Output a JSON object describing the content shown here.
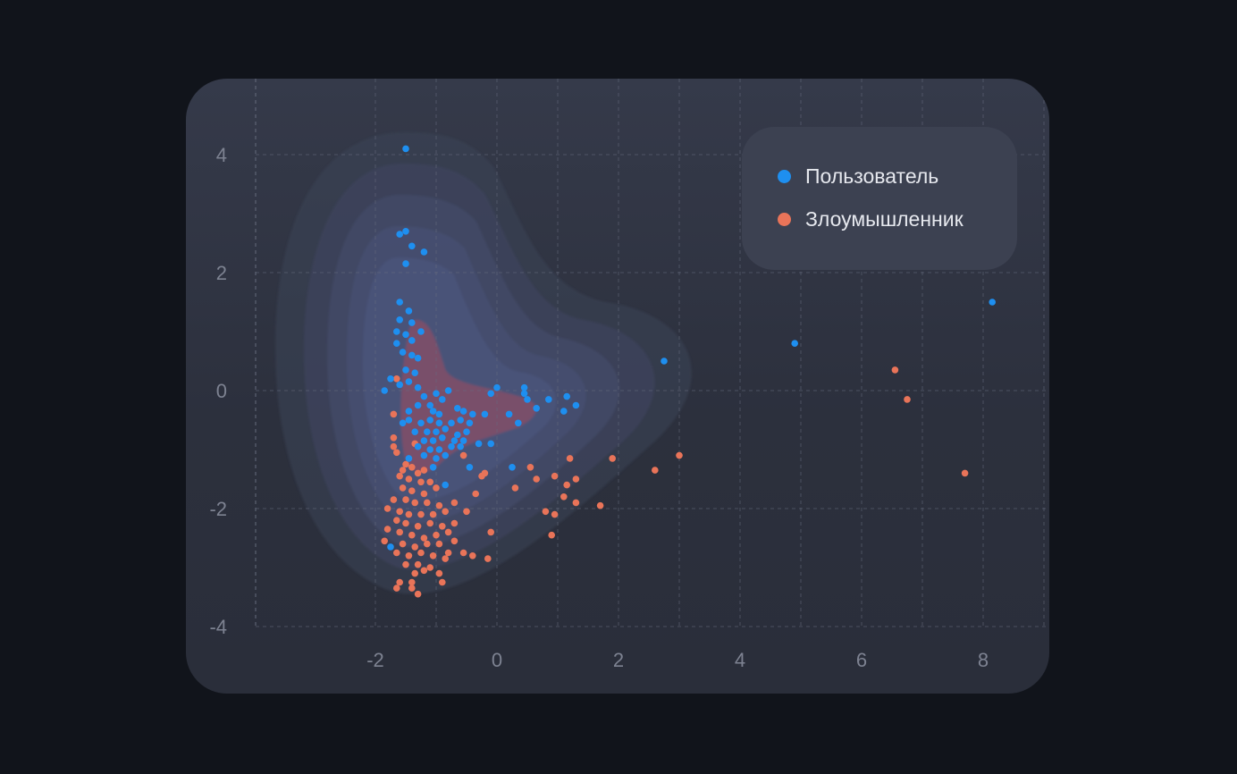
{
  "chart_data": {
    "type": "scatter",
    "title": "",
    "xlabel": "",
    "ylabel": "",
    "xlim": [
      -4.0,
      9.1
    ],
    "ylim": [
      -4.1,
      5.0
    ],
    "xticks": [
      -2,
      0,
      2,
      4,
      6,
      8
    ],
    "yticks": [
      4,
      2,
      0,
      -2,
      -4
    ],
    "xtick_labels": [
      "-2",
      "0",
      "2",
      "4",
      "6",
      "8"
    ],
    "ytick_labels": [
      "4",
      "2",
      "0",
      "-2",
      "-4"
    ],
    "grid": true,
    "legend_position": "top-right",
    "series": [
      {
        "name": "Пользователь",
        "color": "#1e8ff0",
        "points": [
          [
            -1.5,
            4.1
          ],
          [
            -1.6,
            2.65
          ],
          [
            -1.5,
            2.7
          ],
          [
            -1.4,
            2.45
          ],
          [
            -1.2,
            2.35
          ],
          [
            -1.5,
            2.15
          ],
          [
            -1.6,
            1.5
          ],
          [
            -1.45,
            1.35
          ],
          [
            -1.6,
            1.2
          ],
          [
            -1.4,
            1.15
          ],
          [
            -1.25,
            1.0
          ],
          [
            -1.65,
            1.0
          ],
          [
            -1.5,
            0.95
          ],
          [
            -1.4,
            0.85
          ],
          [
            -1.65,
            0.8
          ],
          [
            -1.55,
            0.65
          ],
          [
            -1.4,
            0.6
          ],
          [
            -1.3,
            0.55
          ],
          [
            -1.5,
            0.35
          ],
          [
            -1.35,
            0.3
          ],
          [
            -1.45,
            0.15
          ],
          [
            -1.6,
            0.1
          ],
          [
            -1.75,
            0.2
          ],
          [
            -1.85,
            0.0
          ],
          [
            -1.3,
            0.05
          ],
          [
            -1.2,
            -0.1
          ],
          [
            -1.0,
            -0.05
          ],
          [
            -0.8,
            -0.0
          ],
          [
            -0.9,
            -0.15
          ],
          [
            -1.1,
            -0.25
          ],
          [
            -1.3,
            -0.25
          ],
          [
            -1.45,
            -0.35
          ],
          [
            -1.05,
            -0.35
          ],
          [
            -0.95,
            -0.4
          ],
          [
            -0.65,
            -0.3
          ],
          [
            -0.55,
            -0.35
          ],
          [
            -0.4,
            -0.4
          ],
          [
            -0.2,
            -0.4
          ],
          [
            -0.1,
            -0.05
          ],
          [
            0.0,
            0.05
          ],
          [
            0.2,
            -0.4
          ],
          [
            0.35,
            -0.55
          ],
          [
            0.45,
            -0.05
          ],
          [
            0.5,
            -0.15
          ],
          [
            0.65,
            -0.3
          ],
          [
            0.85,
            -0.15
          ],
          [
            1.15,
            -0.1
          ],
          [
            1.3,
            -0.25
          ],
          [
            1.1,
            -0.35
          ],
          [
            0.45,
            0.05
          ],
          [
            -1.45,
            -0.5
          ],
          [
            -1.55,
            -0.55
          ],
          [
            -1.25,
            -0.55
          ],
          [
            -1.1,
            -0.5
          ],
          [
            -0.95,
            -0.55
          ],
          [
            -0.75,
            -0.55
          ],
          [
            -0.6,
            -0.5
          ],
          [
            -0.45,
            -0.55
          ],
          [
            -1.35,
            -0.7
          ],
          [
            -1.15,
            -0.7
          ],
          [
            -1.0,
            -0.7
          ],
          [
            -0.85,
            -0.65
          ],
          [
            -0.65,
            -0.75
          ],
          [
            -0.5,
            -0.7
          ],
          [
            -1.2,
            -0.85
          ],
          [
            -1.05,
            -0.85
          ],
          [
            -0.9,
            -0.8
          ],
          [
            -0.7,
            -0.85
          ],
          [
            -0.55,
            -0.85
          ],
          [
            -0.3,
            -0.9
          ],
          [
            -0.1,
            -0.9
          ],
          [
            -1.3,
            -0.95
          ],
          [
            -1.1,
            -1.0
          ],
          [
            -0.95,
            -1.0
          ],
          [
            -0.75,
            -0.95
          ],
          [
            -0.6,
            -0.95
          ],
          [
            -1.2,
            -1.1
          ],
          [
            -1.45,
            -1.15
          ],
          [
            -1.0,
            -1.15
          ],
          [
            -0.85,
            -1.1
          ],
          [
            -1.05,
            -1.3
          ],
          [
            -0.45,
            -1.3
          ],
          [
            0.25,
            -1.3
          ],
          [
            -0.85,
            -1.6
          ],
          [
            -1.75,
            -2.65
          ],
          [
            2.75,
            0.5
          ],
          [
            4.9,
            0.8
          ],
          [
            8.15,
            1.5
          ]
        ]
      },
      {
        "name": "Злоумышленник",
        "color": "#e97459",
        "points": [
          [
            -1.65,
            0.2
          ],
          [
            -1.7,
            -0.4
          ],
          [
            -1.7,
            -0.8
          ],
          [
            -1.7,
            -0.95
          ],
          [
            -1.65,
            -1.05
          ],
          [
            -1.35,
            -0.9
          ],
          [
            -1.5,
            -1.25
          ],
          [
            -1.55,
            -1.35
          ],
          [
            -1.4,
            -1.3
          ],
          [
            -1.3,
            -1.4
          ],
          [
            -1.2,
            -1.35
          ],
          [
            -1.6,
            -1.45
          ],
          [
            -1.45,
            -1.5
          ],
          [
            -1.25,
            -1.55
          ],
          [
            -1.1,
            -1.55
          ],
          [
            -1.0,
            -1.65
          ],
          [
            -1.55,
            -1.65
          ],
          [
            -1.4,
            -1.7
          ],
          [
            -1.2,
            -1.75
          ],
          [
            -1.7,
            -1.85
          ],
          [
            -1.5,
            -1.85
          ],
          [
            -1.35,
            -1.9
          ],
          [
            -1.15,
            -1.9
          ],
          [
            -0.95,
            -1.95
          ],
          [
            -1.8,
            -2.0
          ],
          [
            -1.6,
            -2.05
          ],
          [
            -1.45,
            -2.1
          ],
          [
            -1.25,
            -2.1
          ],
          [
            -1.05,
            -2.1
          ],
          [
            -0.85,
            -2.05
          ],
          [
            -1.65,
            -2.2
          ],
          [
            -1.5,
            -2.25
          ],
          [
            -1.3,
            -2.3
          ],
          [
            -1.1,
            -2.25
          ],
          [
            -0.9,
            -2.3
          ],
          [
            -0.7,
            -2.25
          ],
          [
            -1.8,
            -2.35
          ],
          [
            -1.6,
            -2.4
          ],
          [
            -1.4,
            -2.45
          ],
          [
            -1.2,
            -2.5
          ],
          [
            -1.0,
            -2.45
          ],
          [
            -0.8,
            -2.4
          ],
          [
            -1.85,
            -2.55
          ],
          [
            -1.55,
            -2.6
          ],
          [
            -1.35,
            -2.65
          ],
          [
            -1.15,
            -2.6
          ],
          [
            -0.95,
            -2.6
          ],
          [
            -0.7,
            -2.55
          ],
          [
            -1.65,
            -2.75
          ],
          [
            -1.45,
            -2.8
          ],
          [
            -1.25,
            -2.75
          ],
          [
            -1.05,
            -2.8
          ],
          [
            -0.8,
            -2.75
          ],
          [
            -0.55,
            -2.75
          ],
          [
            -1.5,
            -2.95
          ],
          [
            -1.3,
            -2.95
          ],
          [
            -1.1,
            -3.0
          ],
          [
            -0.85,
            -2.85
          ],
          [
            -0.4,
            -2.8
          ],
          [
            -0.15,
            -2.85
          ],
          [
            -1.35,
            -3.1
          ],
          [
            -1.2,
            -3.05
          ],
          [
            -0.95,
            -3.1
          ],
          [
            -1.6,
            -3.25
          ],
          [
            -1.4,
            -3.25
          ],
          [
            -0.9,
            -3.25
          ],
          [
            -1.65,
            -3.35
          ],
          [
            -1.4,
            -3.35
          ],
          [
            -1.3,
            -3.45
          ],
          [
            -0.7,
            -1.9
          ],
          [
            -0.5,
            -2.05
          ],
          [
            -0.35,
            -1.75
          ],
          [
            -0.25,
            -1.45
          ],
          [
            -0.2,
            -1.4
          ],
          [
            -0.1,
            -2.4
          ],
          [
            0.3,
            -1.65
          ],
          [
            0.55,
            -1.3
          ],
          [
            0.65,
            -1.5
          ],
          [
            0.8,
            -2.05
          ],
          [
            0.9,
            -2.45
          ],
          [
            0.95,
            -1.45
          ],
          [
            0.95,
            -2.1
          ],
          [
            1.1,
            -1.8
          ],
          [
            1.15,
            -1.6
          ],
          [
            1.2,
            -1.15
          ],
          [
            1.3,
            -1.9
          ],
          [
            1.3,
            -1.5
          ],
          [
            1.7,
            -1.95
          ],
          [
            1.9,
            -1.15
          ],
          [
            -0.55,
            -1.1
          ],
          [
            2.6,
            -1.35
          ],
          [
            3.0,
            -1.1
          ],
          [
            6.55,
            0.35
          ],
          [
            6.75,
            -0.15
          ],
          [
            7.7,
            -1.4
          ]
        ]
      }
    ]
  },
  "colors": {
    "background": "#11141b",
    "card": "#30343f",
    "grid": "#666c7d",
    "tick": "#7d8291"
  }
}
